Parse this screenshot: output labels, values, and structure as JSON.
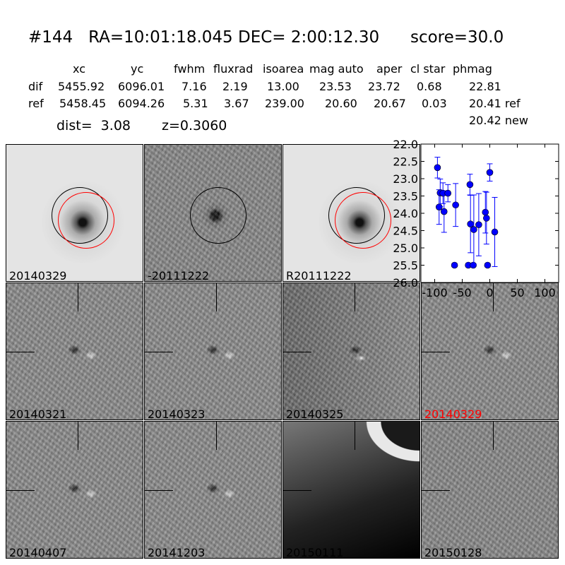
{
  "title": "#144   RA=10:01:18.045 DEC= 2:00:12.30      score=30.0",
  "table": {
    "headers": [
      "xc",
      "yc",
      "fwhm",
      "fluxrad",
      "isoarea",
      "mag auto",
      "aper",
      "cl star",
      "phmag"
    ],
    "rows": [
      {
        "label": "dif",
        "values": [
          "5455.92",
          "6096.01",
          "7.16",
          "2.19",
          "13.00",
          "23.53",
          "23.72",
          "0.68",
          "22.81"
        ]
      },
      {
        "label": "ref",
        "values": [
          "5458.45",
          "6094.26",
          "5.31",
          "3.67",
          "239.00",
          "20.60",
          "20.67",
          "0.03",
          "20.41 ref"
        ]
      }
    ],
    "extra_phmag": "20.42 new",
    "dist": "dist=  3.08",
    "z": "z=0.3060"
  },
  "stamps": [
    {
      "label": "20140329",
      "kind": "sci"
    },
    {
      "label": "-20111222",
      "kind": "dif"
    },
    {
      "label": "R20111222",
      "kind": "ref"
    },
    {
      "label": "20140321",
      "kind": "dip"
    },
    {
      "label": "20140323",
      "kind": "dip"
    },
    {
      "label": "20140325",
      "kind": "dip2"
    },
    {
      "label": "20140329",
      "kind": "dip",
      "highlight": "#ff0000"
    },
    {
      "label": "20140407",
      "kind": "dip"
    },
    {
      "label": "20141203",
      "kind": "dip"
    },
    {
      "label": "20150111",
      "kind": "sat"
    },
    {
      "label": "20150128",
      "kind": "noise"
    }
  ],
  "chart_data": {
    "type": "scatter",
    "xlim": [
      -125,
      125
    ],
    "ylim": [
      26.0,
      22.0
    ],
    "y_inverted": true,
    "xticks": [
      "-100",
      "-50",
      "0",
      "50",
      "100"
    ],
    "yticks": [
      "22.0",
      "22.5",
      "23.0",
      "23.5",
      "24.0",
      "24.5",
      "25.0",
      "25.5",
      "26.0"
    ],
    "color": "#0000ff",
    "points": [
      {
        "x": -95,
        "y": 22.68,
        "err": 0.3
      },
      {
        "x": -92,
        "y": 23.82,
        "err": 0.5
      },
      {
        "x": -90,
        "y": 23.41,
        "err": 0.4
      },
      {
        "x": -85,
        "y": 23.42,
        "err": 0.3
      },
      {
        "x": -83,
        "y": 23.95,
        "err": 0.6
      },
      {
        "x": -76,
        "y": 23.42,
        "err": 0.25
      },
      {
        "x": -62,
        "y": 23.76,
        "err": 0.62
      },
      {
        "x": -64,
        "y": 25.5,
        "err": 0.05
      },
      {
        "x": -39,
        "y": 25.5,
        "err": 0.05
      },
      {
        "x": -36,
        "y": 23.17,
        "err": 0.3
      },
      {
        "x": -35,
        "y": 24.31,
        "err": 0.83
      },
      {
        "x": -30,
        "y": 25.5,
        "err": 0.05
      },
      {
        "x": -29,
        "y": 24.47,
        "err": 1.0
      },
      {
        "x": -20,
        "y": 24.33,
        "err": 0.9
      },
      {
        "x": -8,
        "y": 23.97,
        "err": 0.6
      },
      {
        "x": -6,
        "y": 24.14,
        "err": 0.75
      },
      {
        "x": -4,
        "y": 25.5,
        "err": 0.05
      },
      {
        "x": 0,
        "y": 22.82,
        "err": 0.25
      },
      {
        "x": 9,
        "y": 24.54,
        "err": 1.0
      }
    ]
  }
}
